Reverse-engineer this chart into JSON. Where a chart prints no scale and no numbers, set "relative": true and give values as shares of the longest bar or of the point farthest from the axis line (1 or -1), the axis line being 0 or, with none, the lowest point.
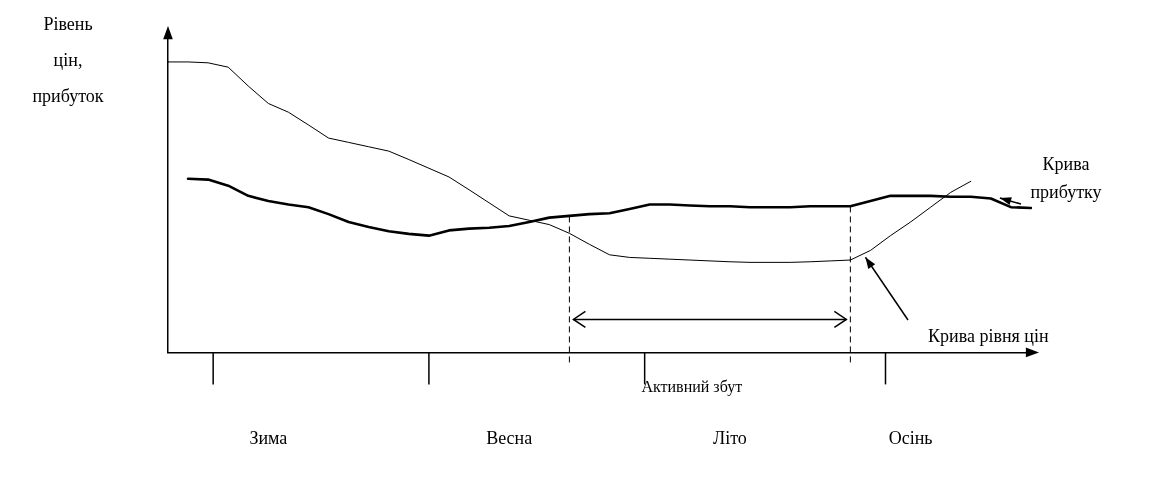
{
  "chart_data": {
    "type": "line",
    "relative": true,
    "ylabel": "Рівень цін, прибуток",
    "categories": [
      null,
      null,
      null,
      null,
      null,
      "Зима",
      null,
      null,
      null,
      null,
      null,
      null,
      null,
      null,
      null,
      null,
      null,
      "Весна",
      null,
      null,
      null,
      null,
      null,
      null,
      null,
      null,
      null,
      null,
      "Літо",
      null,
      null,
      null,
      null,
      null,
      null,
      null,
      null,
      "Осінь",
      null,
      null,
      null,
      null,
      null,
      null
    ],
    "series": [
      {
        "name": "Крива рівня цін",
        "color": "#000000",
        "values": [
          1.0,
          1.0,
          0.997,
          0.982,
          0.917,
          0.857,
          0.827,
          0.783,
          0.738,
          0.723,
          0.708,
          0.693,
          0.664,
          0.634,
          0.604,
          0.56,
          0.515,
          0.47,
          0.455,
          0.44,
          0.41,
          0.372,
          0.336,
          0.327,
          0.324,
          0.321,
          0.318,
          0.315,
          0.312,
          0.31,
          0.31,
          0.31,
          0.312,
          0.315,
          0.318,
          0.351,
          0.402,
          0.449,
          0.5,
          0.551,
          0.589,
          null,
          null,
          null
        ]
      },
      {
        "name": "Крива прибутку",
        "color": "#000000",
        "values": [
          null,
          0.598,
          0.595,
          0.574,
          0.539,
          0.521,
          0.509,
          0.5,
          0.476,
          0.449,
          0.432,
          0.417,
          0.408,
          0.402,
          0.42,
          0.426,
          0.429,
          0.435,
          0.449,
          0.464,
          0.47,
          0.476,
          0.479,
          0.494,
          0.509,
          0.509,
          0.506,
          0.503,
          0.503,
          0.5,
          0.5,
          0.5,
          0.503,
          0.503,
          0.503,
          0.521,
          0.539,
          0.539,
          0.539,
          0.536,
          0.536,
          0.53,
          0.5,
          0.497
        ]
      }
    ],
    "annotations": [
      "Активний збут"
    ],
    "tick_labels": "x",
    "grid": false,
    "legend": false,
    "marker": "none",
    "line_style": "solid"
  }
}
